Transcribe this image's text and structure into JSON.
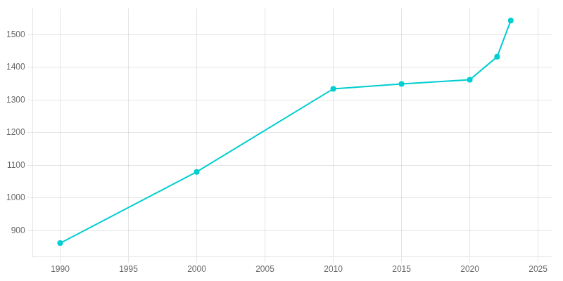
{
  "chart_data": {
    "type": "line",
    "x": [
      1990,
      2000,
      2010,
      2015,
      2020,
      2022,
      2023
    ],
    "values": [
      862,
      1080,
      1334,
      1349,
      1362,
      1432,
      1543
    ],
    "color": "#00CED1",
    "marker": "circle",
    "xlim": [
      1988,
      2026
    ],
    "xticks": [
      1990,
      1995,
      2000,
      2005,
      2010,
      2015,
      2020,
      2025
    ],
    "ylim": [
      820,
      1580
    ],
    "yticks": [
      900,
      1000,
      1100,
      1200,
      1300,
      1400,
      1500
    ],
    "grid": true
  }
}
